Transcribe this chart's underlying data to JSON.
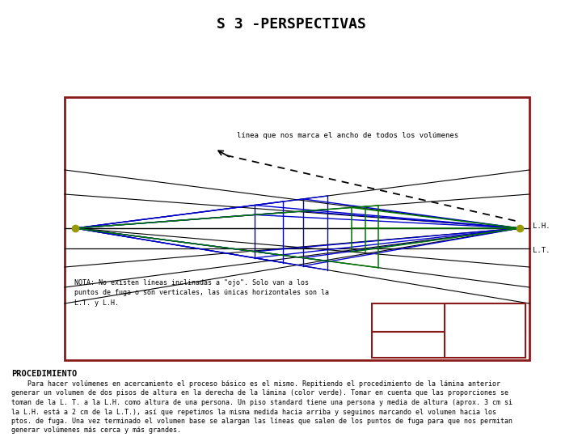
{
  "title": "S 3 -PERSPECTIVAS",
  "title_fontsize": 13,
  "background_color": "#ffffff",
  "border_color": "#8b1a1a",
  "LH_label": "L.H.",
  "LT_label": "L.T.",
  "annotation_text": "línea que nos marca el ancho de todos los volúmenes",
  "nota_text": "NOTA: No existen líneas inclinadas a \"ojo\". Solo van a los\npuntos de fuga o son verticales, las únicas horizontales son la\nL.T. y L.H.",
  "procedimiento_title": "PROCEDIMIENTO",
  "procedimiento_text": "    Para hacer volúmenes en acercamiento el proceso básico es el mismo. Repitiendo el procedimiento de la lámina anterior\ngenerar un volumen de dos pisos de altura en la derecha de la lámina (color verde). Tomar en cuenta que las proporciones se\ntoman de la L. T. a la L.H. como altura de una persona. Un piso standard tiene una persona y media de altura (aprox. 3 cm si\nla L.H. está a 2 cm de la L.T.), así que repetimos la misma medida hacia arriba y seguimos marcando el volumen hacia los\nptos. de fuga. Una vez terminado el volumen base se alargan las líneas que salen de los puntos de fuga para que nos permitan\ngenerar volúmenes más cerca y más grandes.",
  "blue_color": "#0000cc",
  "green_color": "#007700",
  "black_color": "#000000",
  "dot_color": "#999900",
  "fig_w": 7.2,
  "fig_h": 5.4,
  "dpi": 100
}
